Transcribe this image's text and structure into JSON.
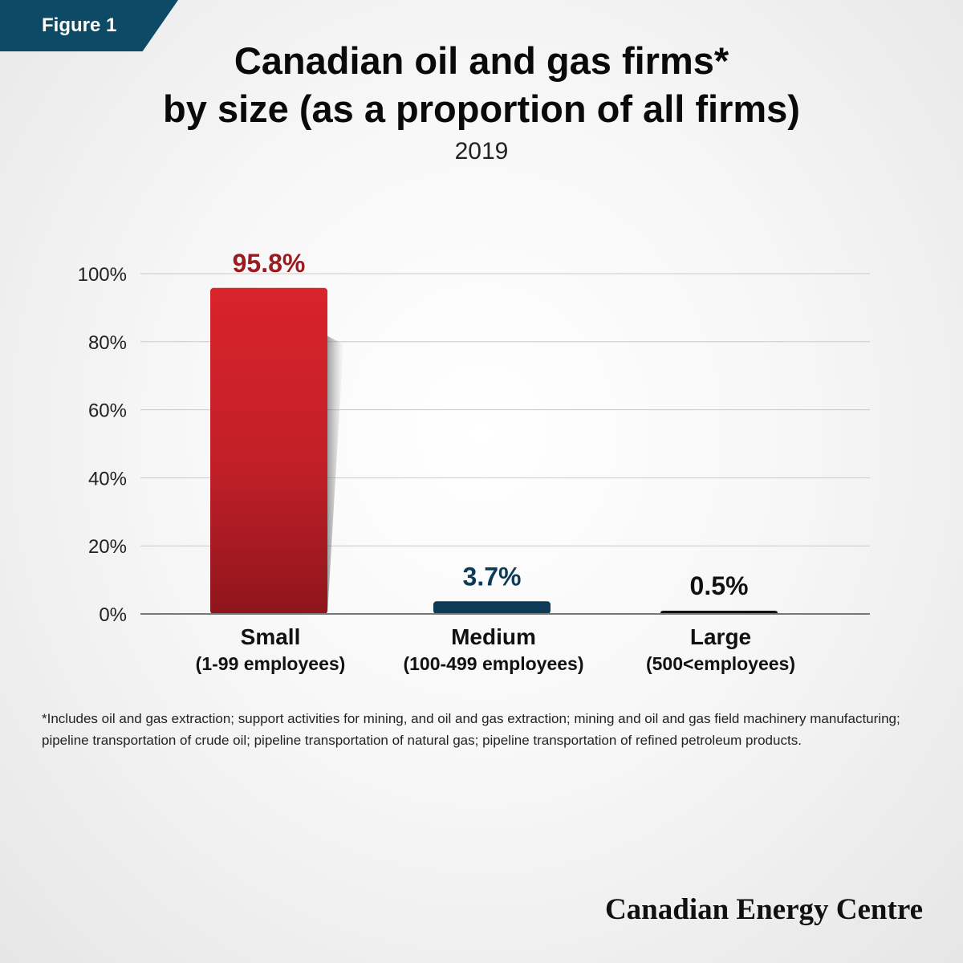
{
  "figure_tag": "Figure 1",
  "title_line1": "Canadian oil and gas firms*",
  "title_line2": "by size (as a proportion of all firms)",
  "subtitle": "2019",
  "footnote": "*Includes oil and gas extraction; support activities for mining, and oil and gas extraction; mining and oil and gas field machinery manufacturing; pipeline transportation of crude oil; pipeline transportation of natural gas; pipeline transportation of refined petroleum products.",
  "brand": "Canadian Energy Centre",
  "colors": {
    "small_bar": "#c8202a",
    "small_label": "#9b1b22",
    "medium_bar": "#0d3b57",
    "medium_label": "#0d3b57",
    "large_bar": "#111111",
    "large_label": "#111111",
    "figure_tag_bg": "#0c4a66"
  },
  "chart_data": {
    "type": "bar",
    "categories": [
      "Small",
      "Medium",
      "Large"
    ],
    "category_sublabels": [
      "(1-99 employees)",
      "(100-499 employees)",
      "(500<employees)"
    ],
    "values": [
      95.8,
      3.7,
      0.5
    ],
    "value_labels": [
      "95.8%",
      "3.7%",
      "0.5%"
    ],
    "y_ticks": [
      "0%",
      "20%",
      "40%",
      "60%",
      "80%",
      "100%"
    ],
    "ylim": [
      0,
      100
    ],
    "grid": true,
    "legend": "none",
    "xlabel": "",
    "ylabel": ""
  }
}
